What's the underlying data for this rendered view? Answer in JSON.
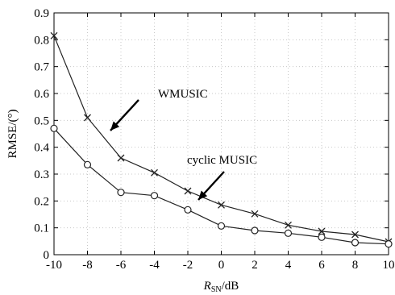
{
  "chart_data": {
    "type": "line",
    "x": [
      -10,
      -8,
      -6,
      -4,
      -2,
      0,
      2,
      4,
      6,
      8,
      10
    ],
    "xlim": [
      -10,
      10
    ],
    "ylim": [
      0,
      0.9
    ],
    "xticks": [
      "-10",
      "-8",
      "-6",
      "-4",
      "-2",
      "0",
      "2",
      "4",
      "6",
      "8",
      "10"
    ],
    "yticks": [
      "0",
      "0.1",
      "0.2",
      "0.3",
      "0.4",
      "0.5",
      "0.6",
      "0.7",
      "0.8",
      "0.9"
    ],
    "xlabel_main": "R",
    "xlabel_sub": "SN",
    "xlabel_unit": "/dB",
    "ylabel": "RMSE/(°)",
    "grid": true,
    "series": [
      {
        "name": "WMUSIC",
        "marker": "x",
        "values": [
          0.815,
          0.51,
          0.36,
          0.305,
          0.237,
          0.185,
          0.152,
          0.11,
          0.087,
          0.075,
          0.048
        ]
      },
      {
        "name": "cyclic MUSIC",
        "marker": "o",
        "values": [
          0.47,
          0.335,
          0.232,
          0.22,
          0.167,
          0.107,
          0.09,
          0.08,
          0.065,
          0.045,
          0.04
        ]
      }
    ],
    "annotations": [
      {
        "text": "WMUSIC",
        "series": 0
      },
      {
        "text": "cyclic MUSIC",
        "series": 1
      }
    ]
  }
}
